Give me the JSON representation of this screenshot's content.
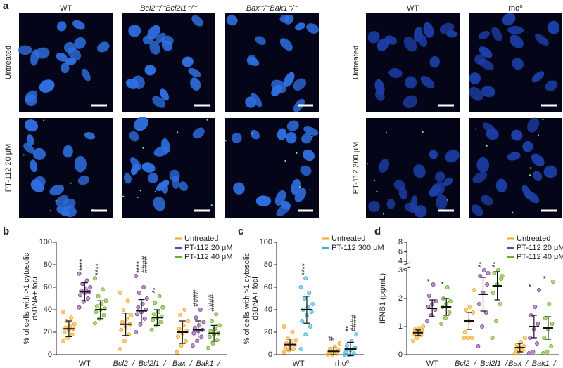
{
  "figure": {
    "panels": [
      "a",
      "b",
      "c",
      "d"
    ],
    "image_columns": [
      "WT",
      "Bcl2⁻/⁻Bcl2l1⁻/⁻",
      "Bax⁻/⁻Bak1⁻/⁻",
      "WT",
      "rho⁰"
    ],
    "image_rows_left": [
      "Untreated",
      "PT-112 20 μM"
    ],
    "image_rows_right": [
      "Untreated",
      "PT-112 300 μM"
    ]
  },
  "chart_data": [
    {
      "type": "dot",
      "ylabel": [
        "% of cells with >1 cytosolic",
        "dsDNA+ foci"
      ],
      "categories": [
        "WT",
        "Bcl2⁻/⁻Bcl2l1⁻/⁻",
        "Bax⁻/⁻Bak1⁻/⁻"
      ],
      "ylim": [
        0,
        100
      ],
      "yticks": [
        0,
        20,
        40,
        60,
        80,
        100
      ],
      "legend": "upper right",
      "series": [
        {
          "name": "Untreated",
          "color": "#f5a623",
          "mean": [
            23,
            27,
            20
          ],
          "sd": [
            7,
            10,
            10
          ],
          "sig": [
            [],
            [],
            []
          ],
          "points": [
            [
              12,
              15,
              18,
              20,
              22,
              23,
              24,
              25,
              27,
              30,
              33,
              38
            ],
            [
              5,
              12,
              18,
              22,
              25,
              27,
              29,
              32,
              35,
              40,
              48,
              55
            ],
            [
              2,
              8,
              12,
              16,
              19,
              21,
              23,
              26,
              30,
              35,
              40
            ]
          ]
        },
        {
          "name": "PT-112 20 μM",
          "color": "#7b3f98",
          "mean": [
            56,
            39,
            22
          ],
          "sd": [
            8,
            10,
            8
          ],
          "sig": [
            [
              "****"
            ],
            [
              "****",
              "####"
            ],
            [
              "####"
            ]
          ],
          "points": [
            [
              42,
              47,
              50,
              53,
              55,
              56,
              57,
              58,
              60,
              63,
              66,
              72
            ],
            [
              20,
              27,
              32,
              36,
              38,
              40,
              42,
              45,
              50,
              55,
              60,
              70
            ],
            [
              8,
              12,
              16,
              19,
              21,
              22,
              24,
              26,
              29,
              33,
              40
            ]
          ]
        },
        {
          "name": "PT-112 40 μM",
          "color": "#6ab023",
          "mean": [
            40,
            33,
            19
          ],
          "sd": [
            8,
            7,
            7
          ],
          "sig": [
            [
              "****"
            ],
            [
              "**"
            ],
            [
              "####"
            ]
          ],
          "points": [
            [
              28,
              32,
              35,
              38,
              40,
              41,
              43,
              45,
              48,
              52,
              58,
              68
            ],
            [
              22,
              26,
              29,
              31,
              33,
              34,
              36,
              38,
              42,
              46,
              52
            ],
            [
              6,
              10,
              13,
              16,
              18,
              19,
              21,
              23,
              26,
              30,
              36
            ]
          ]
        }
      ]
    },
    {
      "type": "dot",
      "ylabel": [
        "% of cells with >1 cytosolic",
        "dsDNA+ foci"
      ],
      "categories": [
        "WT",
        "rho⁰"
      ],
      "ylim": [
        0,
        100
      ],
      "yticks": [
        0,
        20,
        40,
        60,
        80,
        100
      ],
      "legend": "upper right",
      "series": [
        {
          "name": "Untreated",
          "color": "#f5a623",
          "mean": [
            9,
            3
          ],
          "sd": [
            5,
            3
          ],
          "sig": [
            [],
            [
              "#"
            ]
          ],
          "points": [
            [
              2,
              4,
              5,
              6,
              8,
              9,
              10,
              11,
              13,
              15,
              20,
              25
            ],
            [
              0,
              0,
              1,
              2,
              3,
              4,
              5,
              7,
              10
            ]
          ]
        },
        {
          "name": "PT-112 300 μM",
          "color": "#3ab0d8",
          "mean": [
            40,
            5
          ],
          "sd": [
            12,
            6
          ],
          "sig": [
            [
              "****"
            ],
            [
              "**",
              "####"
            ]
          ],
          "points": [
            [
              5,
              18,
              25,
              30,
              35,
              38,
              40,
              42,
              45,
              50,
              55,
              60,
              68
            ],
            [
              0,
              0,
              1,
              2,
              4,
              6,
              8,
              12,
              18
            ]
          ]
        }
      ]
    },
    {
      "type": "dot",
      "ylabel": [
        "IFNB1 (pg/mL)"
      ],
      "categories": [
        "WT",
        "Bcl2⁻/⁻Bcl2l1⁻/⁻",
        "Bax⁻/⁻Bak1⁻/⁻"
      ],
      "ylim": [
        0,
        8
      ],
      "axis_break": [
        3,
        4
      ],
      "yticks": [
        0,
        1,
        2,
        3,
        4,
        6,
        8
      ],
      "legend": "upper right",
      "series": [
        {
          "name": "Untreated",
          "color": "#f5a623",
          "mean": [
            0.78,
            1.2,
            0.25
          ],
          "sd": [
            0.1,
            0.3,
            0.15
          ],
          "sig": [
            [],
            [],
            []
          ],
          "points": [
            [
              0.5,
              0.6,
              0.7,
              0.75,
              0.8,
              0.85,
              0.9,
              0.95,
              1.0
            ],
            [
              0.6,
              0.6,
              0.6,
              0.8,
              1.2,
              1.5,
              1.6,
              1.7,
              2.3
            ],
            [
              0.05,
              0.1,
              0.15,
              0.2,
              0.25,
              0.3,
              0.35,
              0.45,
              0.6
            ]
          ]
        },
        {
          "name": "PT-112 20 μM",
          "color": "#7b3f98",
          "mean": [
            1.65,
            2.15,
            1.0
          ],
          "sd": [
            0.3,
            0.6,
            0.4
          ],
          "sig": [
            [
              "*"
            ],
            [
              "**"
            ],
            [
              "*"
            ]
          ],
          "points": [
            [
              1.2,
              1.4,
              1.6,
              1.7,
              1.8,
              1.9,
              2.1,
              2.5
            ],
            [
              0.3,
              1.0,
              1.5,
              1.8,
              2.2,
              2.5,
              2.8,
              3.0,
              2.9
            ],
            [
              0.05,
              0.1,
              0.4,
              0.6,
              0.9,
              1.1,
              1.4,
              1.7,
              2.3
            ]
          ]
        },
        {
          "name": "PT-112 40 μM",
          "color": "#6ab023",
          "mean": [
            1.7,
            2.45,
            0.95
          ],
          "sd": [
            0.3,
            0.5,
            0.4
          ],
          "sig": [
            [
              "*"
            ],
            [
              "**"
            ],
            [
              "*"
            ]
          ],
          "points": [
            [
              1.1,
              1.3,
              1.5,
              1.7,
              1.8,
              1.9,
              2.0,
              2.4
            ],
            [
              0.6,
              1.2,
              1.8,
              2.2,
              2.5,
              2.7,
              2.9,
              3.0,
              2.8
            ],
            [
              0.05,
              0.1,
              0.3,
              0.6,
              0.9,
              1.1,
              1.3,
              1.8,
              2.6
            ]
          ]
        }
      ]
    }
  ]
}
